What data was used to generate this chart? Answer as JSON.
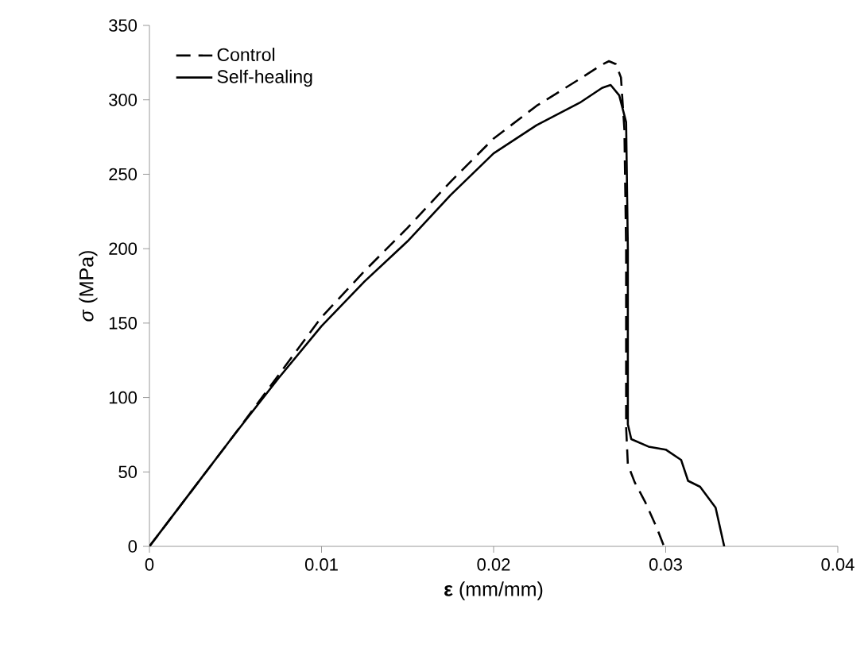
{
  "chart_data": {
    "type": "line",
    "xlabel": "**ε** (mm/mm)",
    "ylabel": "*σ* (MPa)",
    "xlim": [
      0,
      0.04
    ],
    "ylim": [
      0,
      350
    ],
    "xticks": [
      0,
      0.01,
      0.02,
      0.03,
      0.04
    ],
    "yticks": [
      0,
      50,
      100,
      150,
      200,
      250,
      300,
      350
    ],
    "grid": false,
    "legend": "top left",
    "marker": "none",
    "series": [
      {
        "name": "Control",
        "color": "#000000",
        "line_style": "dashed",
        "x": [
          0,
          0.005,
          0.0075,
          0.01,
          0.0125,
          0.015,
          0.0175,
          0.02,
          0.0225,
          0.025,
          0.0262,
          0.0267,
          0.0271,
          0.0274,
          0.0276,
          0.0277,
          0.0277,
          0.0278,
          0.0282,
          0.0288,
          0.0295,
          0.0299
        ],
        "values": [
          0,
          76,
          115,
          154,
          185,
          214,
          245,
          274,
          296,
          314,
          323,
          326,
          324,
          315,
          280,
          200,
          80,
          55,
          43,
          30,
          12,
          0
        ]
      },
      {
        "name": "Self-healing",
        "color": "#000000",
        "line_style": "solid",
        "x": [
          0,
          0.005,
          0.0075,
          0.01,
          0.0125,
          0.015,
          0.0175,
          0.02,
          0.0225,
          0.025,
          0.0263,
          0.0268,
          0.0273,
          0.0277,
          0.0278,
          0.0278,
          0.028,
          0.029,
          0.03,
          0.0309,
          0.0313,
          0.032,
          0.0329,
          0.0334
        ],
        "values": [
          0,
          76,
          113,
          148,
          178,
          205,
          236,
          264,
          283,
          298,
          308,
          310,
          303,
          285,
          200,
          82,
          72,
          67,
          65,
          58,
          44,
          40,
          26,
          0
        ]
      }
    ]
  }
}
